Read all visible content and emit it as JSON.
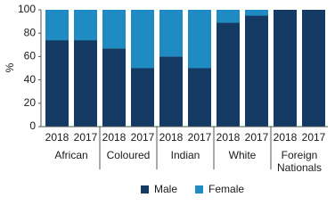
{
  "chart_data": {
    "type": "stacked-bar",
    "y_label": "%",
    "categories": [
      "2018",
      "2017",
      "2018",
      "2017",
      "2018",
      "2017",
      "2018",
      "2017",
      "2018",
      "2017"
    ],
    "group_labels": [
      [
        "African"
      ],
      [
        "Coloured"
      ],
      [
        "Indian"
      ],
      [
        "White"
      ],
      [
        "Foreign",
        "Nationals"
      ]
    ],
    "series": [
      {
        "name": "Male",
        "color": "#123a63",
        "values": [
          74,
          74,
          67,
          50,
          60,
          50,
          89,
          95,
          100,
          100
        ]
      },
      {
        "name": "Female",
        "color": "#1e8bc3",
        "values": [
          26,
          26,
          33,
          50,
          40,
          50,
          11,
          5,
          0,
          0
        ]
      }
    ],
    "ylim": [
      0,
      100
    ],
    "yticks": [
      0,
      20,
      40,
      60,
      80,
      100
    ],
    "grid": false
  }
}
